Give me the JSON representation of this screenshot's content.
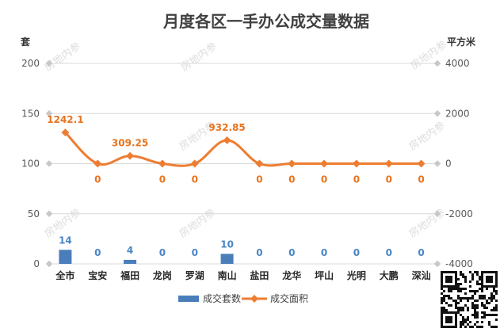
{
  "chart_data": {
    "type": "bar+line",
    "title": "月度各区一手办公成交量数据",
    "categories": [
      "全市",
      "宝安",
      "福田",
      "龙岗",
      "罗湖",
      "南山",
      "盐田",
      "龙华",
      "坪山",
      "光明",
      "大鹏",
      "深汕"
    ],
    "y_left": {
      "label": "套",
      "lim": [
        0,
        200
      ],
      "ticks": [
        0,
        50,
        100,
        150,
        200
      ]
    },
    "y_right": {
      "label": "平方米",
      "lim": [
        -4000,
        4000
      ],
      "ticks": [
        -4000,
        -2000,
        0,
        2000,
        4000
      ]
    },
    "series": [
      {
        "name": "成交套数",
        "type": "bar",
        "axis": "left",
        "color": "#4a7ebb",
        "label_color": "#4a86c5",
        "values": [
          14,
          0,
          4,
          0,
          0,
          10,
          0,
          0,
          0,
          0,
          0,
          0
        ],
        "labels": [
          "14",
          "0",
          "4",
          "0",
          "0",
          "10",
          "0",
          "0",
          "0",
          "0",
          "0",
          "0"
        ]
      },
      {
        "name": "成交面积",
        "type": "line",
        "axis": "right",
        "color": "#ed7d31",
        "label_color": "#e8731c",
        "values": [
          1242.1,
          0,
          309.25,
          0,
          0,
          932.85,
          0,
          0,
          0,
          0,
          0,
          0
        ],
        "labels": [
          "1242.1",
          "0",
          "309.25",
          "0",
          "0",
          "932.85",
          "0",
          "0",
          "0",
          "0",
          "0",
          "0"
        ]
      }
    ],
    "legend_position": "bottom",
    "grid": true
  },
  "watermark": "房地内参",
  "qr_icon": "qr-code-icon"
}
